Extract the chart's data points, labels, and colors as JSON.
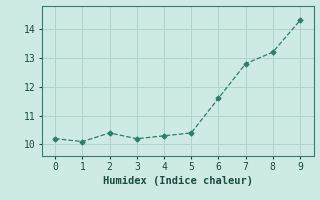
{
  "x": [
    0,
    1,
    2,
    3,
    4,
    5,
    6,
    7,
    8,
    9
  ],
  "y": [
    10.2,
    10.1,
    10.4,
    10.2,
    10.3,
    10.4,
    11.6,
    12.8,
    13.2,
    14.3
  ],
  "line_color": "#2e7d6e",
  "marker": "D",
  "marker_size": 2.5,
  "bg_color": "#ceeae4",
  "grid_color": "#aed4cc",
  "xlabel": "Humidex (Indice chaleur)",
  "xlabel_fontsize": 7.5,
  "tick_fontsize": 7,
  "ylim": [
    9.6,
    14.8
  ],
  "xlim": [
    -0.5,
    9.5
  ],
  "yticks": [
    10,
    11,
    12,
    13,
    14
  ],
  "xticks": [
    0,
    1,
    2,
    3,
    4,
    5,
    6,
    7,
    8,
    9
  ]
}
